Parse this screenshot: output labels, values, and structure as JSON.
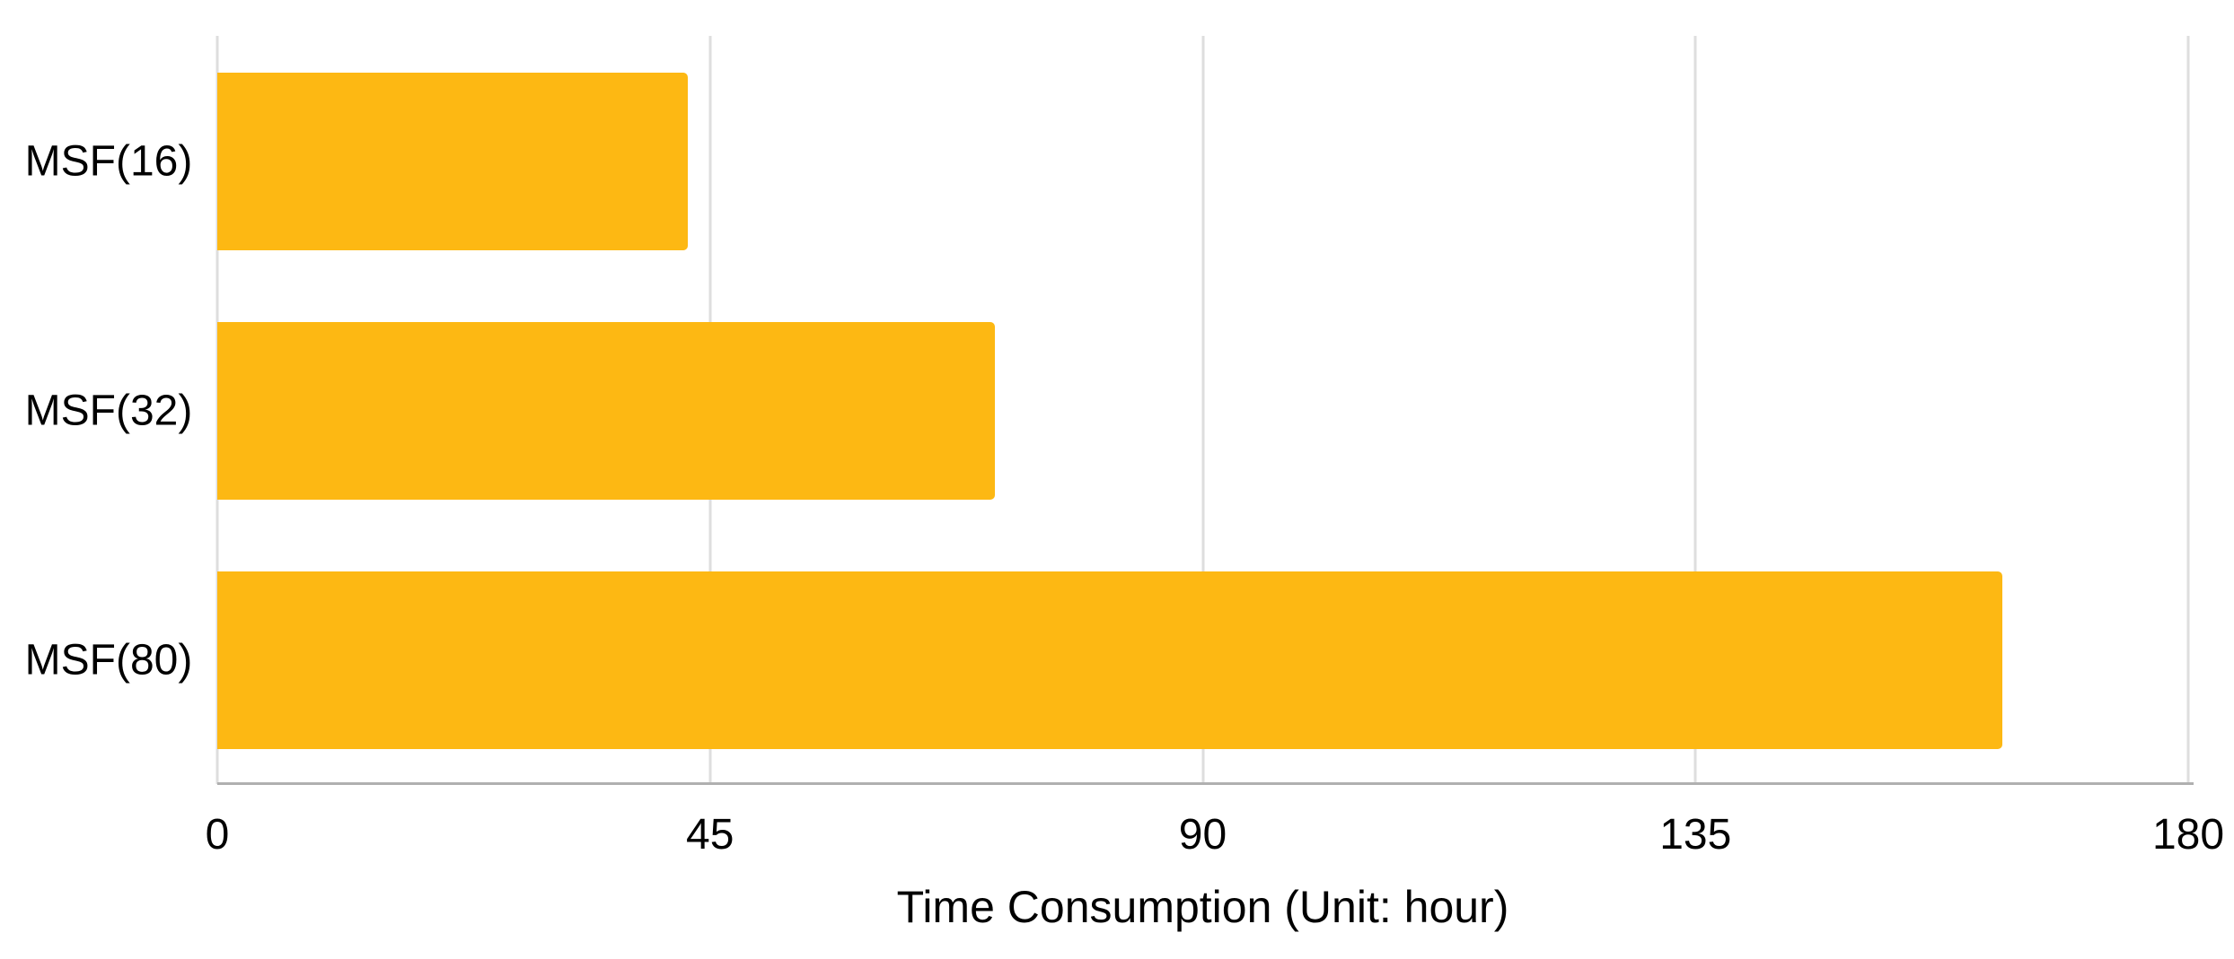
{
  "chart_data": {
    "type": "bar",
    "orientation": "horizontal",
    "title": "",
    "categories": [
      "MSF(16)",
      "MSF(32)",
      "MSF(80)"
    ],
    "values": [
      43,
      71,
      163
    ],
    "series": [
      {
        "name": "Time Consumption",
        "values": [
          43,
          71,
          163
        ]
      }
    ],
    "xlabel": "Time Consumption (Unit: hour)",
    "ylabel": "",
    "xticks": [
      0,
      45,
      90,
      135,
      180
    ],
    "xlim": [
      0,
      180
    ],
    "grid": true,
    "legend": "none",
    "bar_color": "#FDB813",
    "gridline_color": "#DEDEDE",
    "axis_line_color": "#B0B0B0",
    "text_color": "#000000",
    "background_color": "#FFFFFF"
  }
}
